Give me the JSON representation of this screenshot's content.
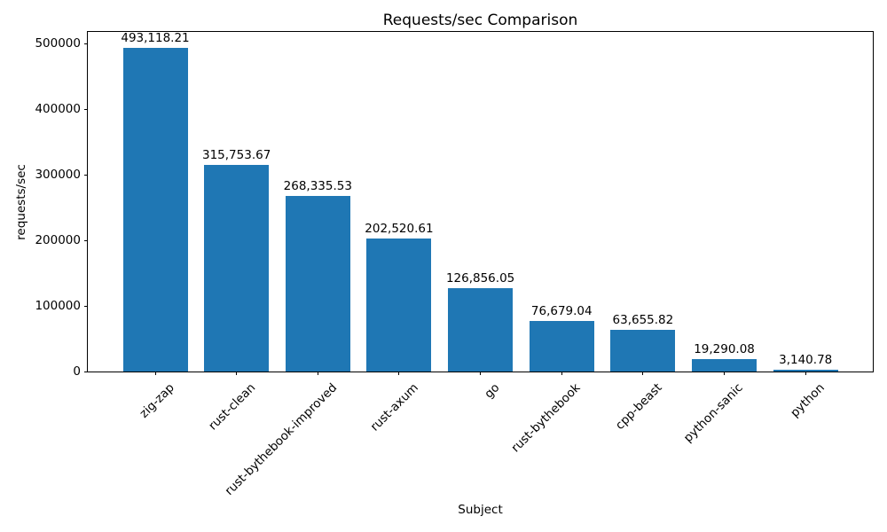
{
  "chart_data": {
    "type": "bar",
    "title": "Requests/sec Comparison",
    "xlabel": "Subject",
    "ylabel": "requests/sec",
    "categories": [
      "zig-zap",
      "rust-clean",
      "rust-bythebook-improved",
      "rust-axum",
      "go",
      "rust-bythebook",
      "cpp-beast",
      "python-sanic",
      "python"
    ],
    "values": [
      493118.21,
      315753.67,
      268335.53,
      202520.61,
      126856.05,
      76679.04,
      63655.82,
      19290.08,
      3140.78
    ],
    "bar_labels": [
      "493,118.21",
      "315,753.67",
      "268,335.53",
      "202,520.61",
      "126,856.05",
      "76,679.04",
      "63,655.82",
      "19,290.08",
      "3,140.78"
    ],
    "yticks": [
      0,
      100000,
      200000,
      300000,
      400000,
      500000
    ],
    "ytick_labels": [
      "0",
      "100000",
      "200000",
      "300000",
      "400000",
      "500000"
    ],
    "ylim": [
      0,
      518000
    ],
    "xtick_rotation_deg": 45,
    "grid": false,
    "legend": null,
    "bar_color": "#1f77b4",
    "text_color": "#000000",
    "background_color": "#ffffff"
  }
}
